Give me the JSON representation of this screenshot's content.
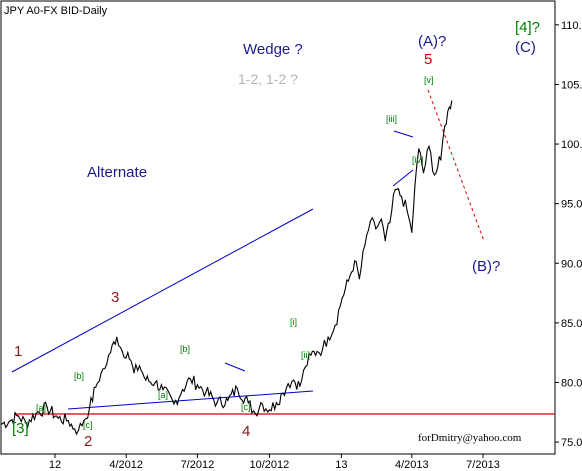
{
  "chart_data": {
    "type": "line",
    "title": "JPY A0-FX BID-Daily",
    "ylim": [
      74,
      112
    ],
    "y_ticks": [
      "75.0",
      "80.0",
      "85.0",
      "90.0",
      "95.0",
      "100.0",
      "105.0",
      "110.0"
    ],
    "y_tick_values": [
      75,
      80,
      85,
      90,
      95,
      100,
      105,
      110
    ],
    "x_ticks": [
      "12",
      "4/2012",
      "7/2012",
      "10/2012",
      "13",
      "4/2013",
      "7/2013"
    ],
    "x_tick_dates": [
      "2012-01-01",
      "2012-04-01",
      "2012-07-01",
      "2012-10-01",
      "2013-01-01",
      "2013-04-01",
      "2013-07-01"
    ],
    "x_range": [
      "2011-10-24",
      "2013-10-01"
    ],
    "series": [
      {
        "values": [
          [
            "2011-10-24",
            76.5
          ],
          [
            "2011-11-05",
            76.8
          ],
          [
            "2011-11-15",
            77.2
          ],
          [
            "2011-11-25",
            76.6
          ],
          [
            "2011-12-08",
            77.4
          ],
          [
            "2011-12-22",
            77.9
          ],
          [
            "2012-01-05",
            77.0
          ],
          [
            "2012-01-18",
            76.8
          ],
          [
            "2012-01-26",
            76.1
          ],
          [
            "2012-01-31",
            76.0
          ],
          [
            "2012-02-07",
            76.8
          ],
          [
            "2012-02-14",
            77.8
          ],
          [
            "2012-02-22",
            79.6
          ],
          [
            "2012-02-29",
            80.8
          ],
          [
            "2012-03-07",
            81.5
          ],
          [
            "2012-03-12",
            82.5
          ],
          [
            "2012-03-16",
            83.4
          ],
          [
            "2012-03-20",
            83.8
          ],
          [
            "2012-03-27",
            82.6
          ],
          [
            "2012-04-03",
            82.5
          ],
          [
            "2012-04-11",
            80.8
          ],
          [
            "2012-04-18",
            81.4
          ],
          [
            "2012-04-26",
            80.2
          ],
          [
            "2012-05-08",
            80.0
          ],
          [
            "2012-05-18",
            79.4
          ],
          [
            "2012-06-01",
            78.2
          ],
          [
            "2012-06-12",
            79.4
          ],
          [
            "2012-06-22",
            80.3
          ],
          [
            "2012-07-01",
            79.8
          ],
          [
            "2012-07-12",
            79.2
          ],
          [
            "2012-07-26",
            78.3
          ],
          [
            "2012-08-09",
            78.5
          ],
          [
            "2012-08-21",
            79.5
          ],
          [
            "2012-09-04",
            78.3
          ],
          [
            "2012-09-13",
            77.4
          ],
          [
            "2012-09-20",
            78.3
          ],
          [
            "2012-10-01",
            77.7
          ],
          [
            "2012-10-10",
            78.3
          ],
          [
            "2012-10-18",
            79.1
          ],
          [
            "2012-10-25",
            79.9
          ],
          [
            "2012-11-01",
            80.2
          ],
          [
            "2012-11-09",
            79.7
          ],
          [
            "2012-11-16",
            81.3
          ],
          [
            "2012-11-23",
            82.3
          ],
          [
            "2012-12-01",
            82.6
          ],
          [
            "2012-12-08",
            82.8
          ],
          [
            "2012-12-15",
            83.8
          ],
          [
            "2012-12-24",
            84.8
          ],
          [
            "2013-01-02",
            87.1
          ],
          [
            "2013-01-10",
            88.5
          ],
          [
            "2013-01-18",
            90.2
          ],
          [
            "2013-01-24",
            88.7
          ],
          [
            "2013-01-31",
            91.5
          ],
          [
            "2013-02-07",
            93.5
          ],
          [
            "2013-02-14",
            92.9
          ],
          [
            "2013-02-21",
            93.7
          ],
          [
            "2013-02-26",
            91.9
          ],
          [
            "2013-03-04",
            93.4
          ],
          [
            "2013-03-11",
            96.2
          ],
          [
            "2013-03-19",
            95.6
          ],
          [
            "2013-03-26",
            94.4
          ],
          [
            "2013-04-01",
            92.6
          ],
          [
            "2013-04-05",
            96.5
          ],
          [
            "2013-04-10",
            99.6
          ],
          [
            "2013-04-16",
            97.6
          ],
          [
            "2013-04-23",
            99.8
          ],
          [
            "2013-04-30",
            97.4
          ],
          [
            "2013-05-08",
            98.7
          ],
          [
            "2013-05-13",
            101.5
          ],
          [
            "2013-05-19",
            103.1
          ],
          [
            "2013-05-22",
            103.6
          ]
        ]
      }
    ],
    "annotations": {
      "wave_main": [
        "1",
        "2",
        "3",
        "4",
        "5"
      ],
      "wave_brackets": [
        "[3]",
        "[4]?"
      ],
      "wave_letters": [
        "(A)?",
        "(B)?",
        "(C)"
      ],
      "wave_sub": [
        "[a]",
        "[b]",
        "[c]",
        "[a]",
        "[b]",
        "[c]",
        "[i]",
        "[ii]",
        "[iii]",
        "[iv]",
        "[v]"
      ],
      "texts": [
        "Wedge ?",
        "1-2, 1-2 ?",
        "Alternate"
      ],
      "watermark": "forDmitry@yahoo.com"
    },
    "colors": {
      "price": "#000000",
      "trendline": "#0000cc",
      "support": "#cc0000",
      "projection": "#dd0000",
      "wave_dark_red": "#8b1a1a",
      "wave_green": "#008000",
      "navy": "#1a1a8c",
      "gray": "#b4b4b4"
    }
  }
}
